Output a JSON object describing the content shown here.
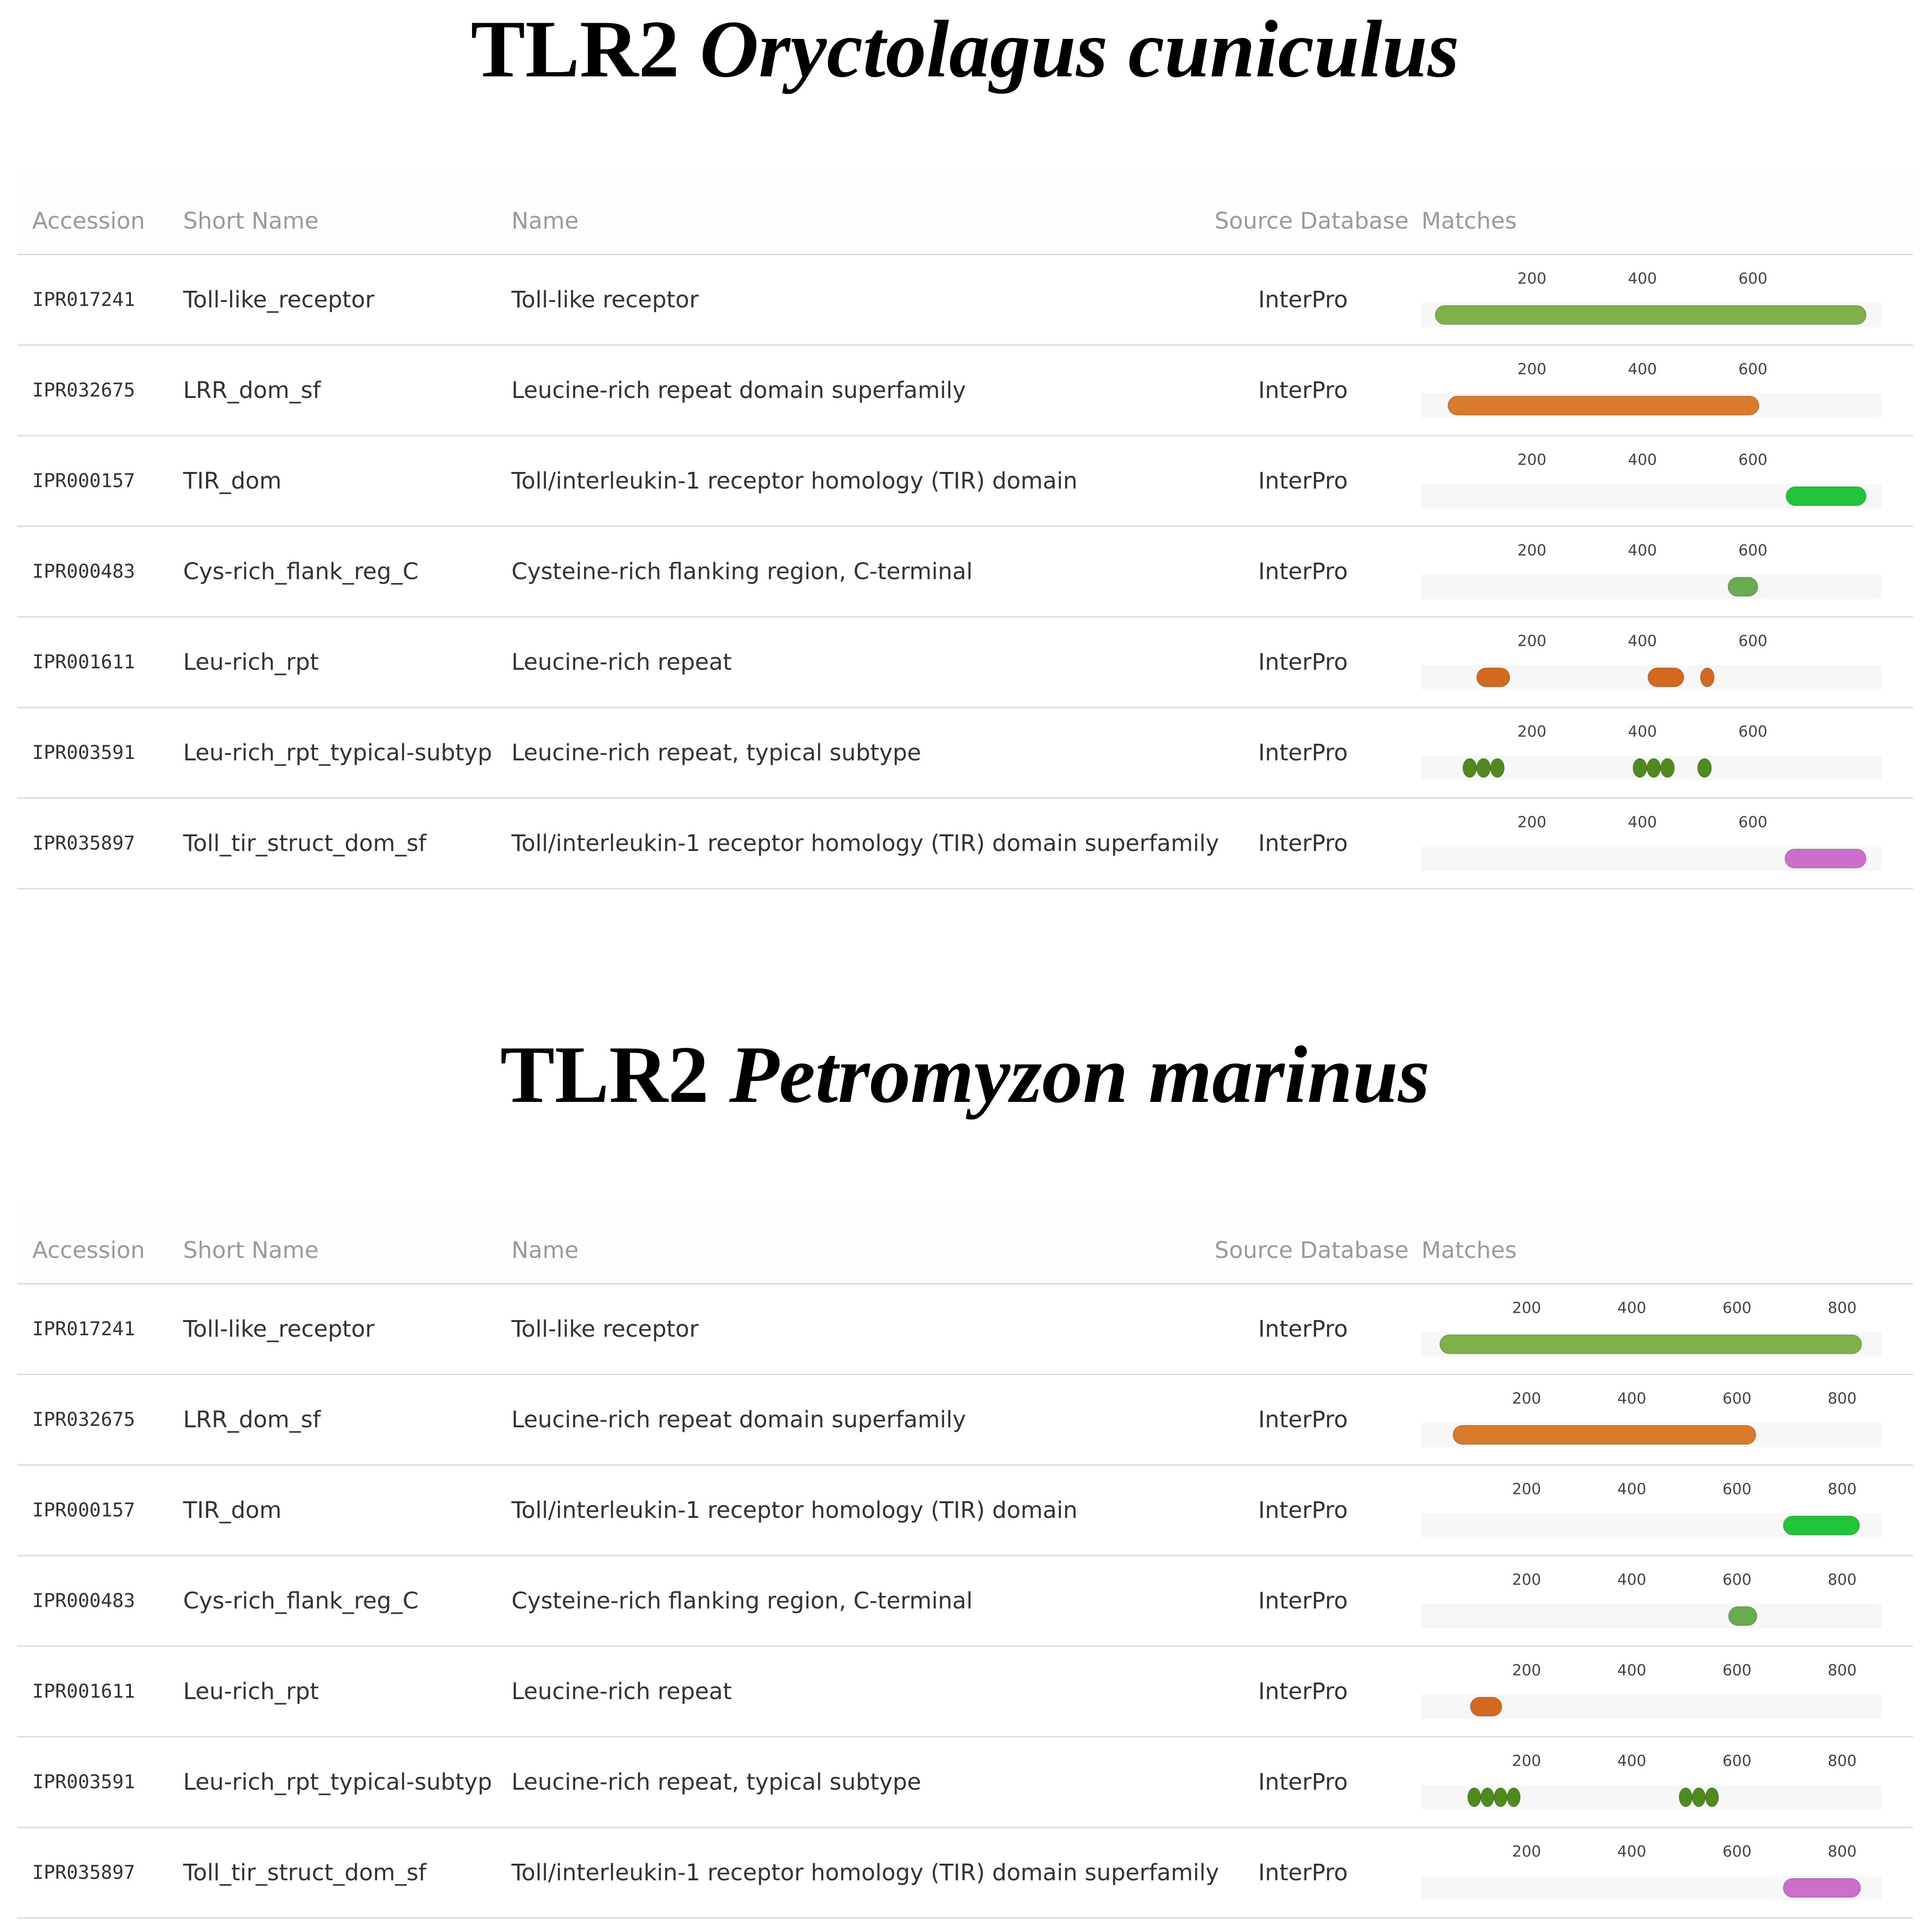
{
  "tables": [
    {
      "title_prefix": "TLR2",
      "title_species": "Oryctolagus cuniculus",
      "headers": {
        "accession": "Accession",
        "short_name": "Short Name",
        "name": "Name",
        "source_database": "Source Database",
        "matches": "Matches"
      },
      "axis": {
        "max": 833,
        "ticks": [
          200,
          400,
          600
        ]
      },
      "rows": [
        {
          "accession": "IPR017241",
          "short_name": "Toll-like_receptor",
          "name": "Toll-like receptor",
          "source": "InterPro",
          "color": "#7fb04a",
          "matches": [
            [
              25,
              805
            ]
          ]
        },
        {
          "accession": "IPR032675",
          "short_name": "LRR_dom_sf",
          "name": "Leucine-rich repeat domain superfamily",
          "source": "InterPro",
          "color": "#d9792a",
          "matches": [
            [
              48,
              611
            ]
          ]
        },
        {
          "accession": "IPR000157",
          "short_name": "TIR_dom",
          "name": "Toll/interleukin-1 receptor homology (TIR) domain",
          "source": "InterPro",
          "color": "#22c43c",
          "matches": [
            [
              660,
              805
            ]
          ]
        },
        {
          "accession": "IPR000483",
          "short_name": "Cys-rich_flank_reg_C",
          "name": "Cysteine-rich flanking region, C-terminal",
          "source": "InterPro",
          "color": "#6aaa50",
          "matches": [
            [
              555,
              609
            ]
          ]
        },
        {
          "accession": "IPR001611",
          "short_name": "Leu-rich_rpt",
          "name": "Leucine-rich repeat",
          "source": "InterPro",
          "color": "#d2691e",
          "matches": [
            [
              100,
              160
            ],
            [
              410,
              475
            ],
            [
              505,
              530
            ]
          ]
        },
        {
          "accession": "IPR003591",
          "short_name": "Leu-rich_rpt_typical-subtyp",
          "name": "Leucine-rich repeat, typical subtype",
          "source": "InterPro",
          "color": "#4e8a1e",
          "matches": [
            [
              75,
              100
            ],
            [
              100,
              125
            ],
            [
              125,
              150
            ],
            [
              383,
              408
            ],
            [
              408,
              433
            ],
            [
              433,
              458
            ],
            [
              500,
              525
            ]
          ]
        },
        {
          "accession": "IPR035897",
          "short_name": "Toll_tir_struct_dom_sf",
          "name": "Toll/interleukin-1 receptor homology (TIR) domain superfamily",
          "source": "InterPro",
          "color": "#cc6fcc",
          "matches": [
            [
              658,
              805
            ]
          ]
        }
      ]
    },
    {
      "title_prefix": "TLR2",
      "title_species": "Petromyzon marinus",
      "headers": {
        "accession": "Accession",
        "short_name": "Short Name",
        "name": "Name",
        "source_database": "Source Database",
        "matches": "Matches"
      },
      "axis": {
        "max": 875,
        "ticks": [
          200,
          400,
          600,
          800
        ]
      },
      "rows": [
        {
          "accession": "IPR017241",
          "short_name": "Toll-like_receptor",
          "name": "Toll-like receptor",
          "source": "InterPro",
          "color": "#7fb04a",
          "matches": [
            [
              35,
              837
            ]
          ]
        },
        {
          "accession": "IPR032675",
          "short_name": "LRR_dom_sf",
          "name": "Leucine-rich repeat domain superfamily",
          "source": "InterPro",
          "color": "#d9792a",
          "matches": [
            [
              60,
              636
            ]
          ]
        },
        {
          "accession": "IPR000157",
          "short_name": "TIR_dom",
          "name": "Toll/interleukin-1 receptor homology (TIR) domain",
          "source": "InterPro",
          "color": "#22c43c",
          "matches": [
            [
              688,
              833
            ]
          ]
        },
        {
          "accession": "IPR000483",
          "short_name": "Cys-rich_flank_reg_C",
          "name": "Cysteine-rich flanking region, C-terminal",
          "source": "InterPro",
          "color": "#6aaa50",
          "matches": [
            [
              584,
              638
            ]
          ]
        },
        {
          "accession": "IPR001611",
          "short_name": "Leu-rich_rpt",
          "name": "Leucine-rich repeat",
          "source": "InterPro",
          "color": "#d2691e",
          "matches": [
            [
              93,
              153
            ]
          ]
        },
        {
          "accession": "IPR003591",
          "short_name": "Leu-rich_rpt_typical-subtyp",
          "name": "Leucine-rich repeat, typical subtype",
          "source": "InterPro",
          "color": "#4e8a1e",
          "matches": [
            [
              88,
              113
            ],
            [
              113,
              138
            ],
            [
              138,
              163
            ],
            [
              163,
              188
            ],
            [
              490,
              515
            ],
            [
              515,
              540
            ],
            [
              540,
              565
            ]
          ]
        },
        {
          "accession": "IPR035897",
          "short_name": "Toll_tir_struct_dom_sf",
          "name": "Toll/interleukin-1 receptor homology (TIR) domain superfamily",
          "source": "InterPro",
          "color": "#cc6fcc",
          "matches": [
            [
              688,
              835
            ]
          ]
        }
      ]
    }
  ]
}
